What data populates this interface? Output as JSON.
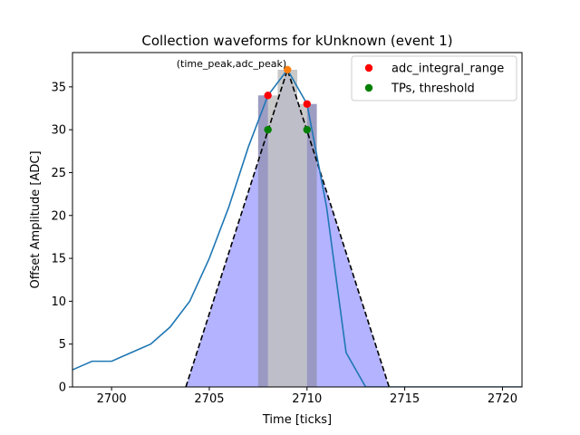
{
  "chart_data": {
    "type": "line",
    "title": "Collection waveforms for kUnknown (event 1)",
    "xlabel": "Time [ticks]",
    "ylabel": "Offset Amplitude [ADC]",
    "xlim": [
      2698,
      2721
    ],
    "ylim": [
      0,
      39
    ],
    "xticks": [
      2700,
      2705,
      2710,
      2715,
      2720
    ],
    "yticks": [
      0,
      5,
      10,
      15,
      20,
      25,
      30,
      35
    ],
    "grid": false,
    "legend_position": "top-right",
    "colors": {
      "waveform": "#1f77b4",
      "fill": "#b3b3ff",
      "bars": "#bfbfbf",
      "triangle": "#000000",
      "adc_range": "#ff0000",
      "tps": "#008000",
      "peak": "#ff7f0e"
    },
    "waveform": {
      "x": [
        2698,
        2699,
        2700,
        2701,
        2702,
        2703,
        2704,
        2705,
        2706,
        2707,
        2708,
        2709,
        2710,
        2711,
        2712,
        2713,
        2714,
        2715,
        2716,
        2717,
        2718,
        2719,
        2720,
        2721
      ],
      "y": [
        2,
        3,
        3,
        4,
        5,
        7,
        10,
        15,
        21,
        28,
        34,
        37,
        33,
        21,
        4,
        0,
        0,
        0,
        0,
        0,
        0,
        0,
        0,
        0
      ]
    },
    "triangle": {
      "x": [
        2703.8,
        2709,
        2714.2
      ],
      "y": [
        0,
        37,
        0
      ]
    },
    "bars": [
      {
        "x0": 2707.5,
        "x1": 2708.5,
        "value": 34
      },
      {
        "x0": 2708.5,
        "x1": 2709.5,
        "value": 37
      },
      {
        "x0": 2709.5,
        "x1": 2710.5,
        "value": 33
      }
    ],
    "tp_band": {
      "x0": 2708,
      "x1": 2710
    },
    "adc_integral_range": {
      "x": [
        2708,
        2710
      ],
      "y": [
        34,
        33
      ]
    },
    "tps_threshold": {
      "x": [
        2708,
        2710
      ],
      "y": [
        30,
        30
      ]
    },
    "peak": {
      "x": 2709,
      "y": 37
    },
    "annotation": "(time_peak,adc_peak)",
    "legend": [
      {
        "label": "adc_integral_range",
        "color": "#ff0000"
      },
      {
        "label": "TPs, threshold",
        "color": "#008000"
      }
    ]
  }
}
